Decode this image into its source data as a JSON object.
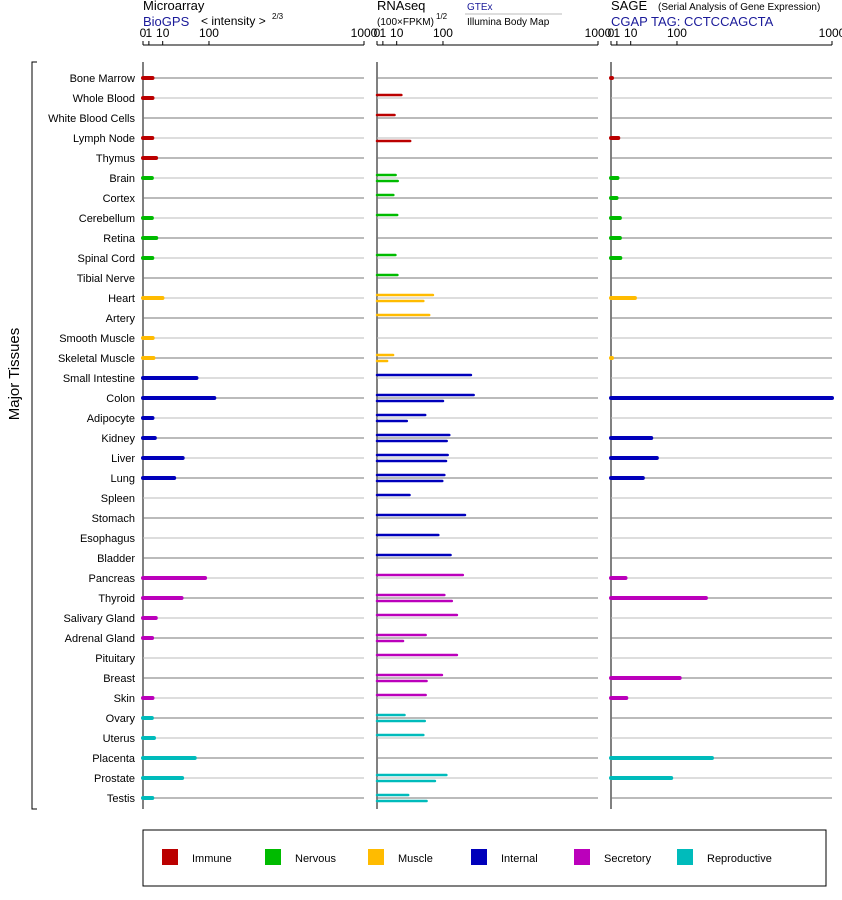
{
  "y_axis_label": "Major Tissues",
  "legend": [
    {
      "name": "Immune",
      "color": "#bb0000"
    },
    {
      "name": "Nervous",
      "color": "#00bb00"
    },
    {
      "name": "Muscle",
      "color": "#ffbb00"
    },
    {
      "name": "Internal",
      "color": "#0000bb"
    },
    {
      "name": "Secretory",
      "color": "#bb00bb"
    },
    {
      "name": "Reproductive",
      "color": "#00bbbb"
    }
  ],
  "chart_data": [
    {
      "type": "bar",
      "panel": "microarray",
      "title": "Microarray",
      "subtitle_link": "BioGPS",
      "subtitle_note": "< intensity >",
      "subtitle_exp": "2/3",
      "xscale": "power",
      "xticks": [
        "0",
        "1",
        "10",
        "100",
        "1000"
      ],
      "xlim": [
        0,
        1000
      ],
      "categories": [
        "Bone Marrow",
        "Whole Blood",
        "White Blood Cells",
        "Lymph Node",
        "Thymus",
        "Brain",
        "Cortex",
        "Cerebellum",
        "Retina",
        "Spinal Cord",
        "Tibial Nerve",
        "Heart",
        "Artery",
        "Smooth Muscle",
        "Skeletal Muscle",
        "Small Intestine",
        "Colon",
        "Adipocyte",
        "Kidney",
        "Liver",
        "Lung",
        "Spleen",
        "Stomach",
        "Esophagus",
        "Bladder",
        "Pancreas",
        "Thyroid",
        "Salivary Gland",
        "Adrenal Gland",
        "Pituitary",
        "Breast",
        "Skin",
        "Ovary",
        "Uterus",
        "Placenta",
        "Prostate",
        "Testis"
      ],
      "values": [
        2.5,
        2.5,
        null,
        2.4,
        4.6,
        2.2,
        null,
        2.2,
        4.7,
        2.4,
        null,
        9.8,
        null,
        2.6,
        3.0,
        67,
        116,
        2.5,
        3.8,
        38,
        24,
        null,
        null,
        null,
        null,
        89,
        36,
        4.4,
        2.3,
        null,
        null,
        2.5,
        2.2,
        3.3,
        63,
        37,
        2.4
      ],
      "groups": [
        "Immune",
        "Immune",
        "Immune",
        "Immune",
        "Immune",
        "Nervous",
        "Nervous",
        "Nervous",
        "Nervous",
        "Nervous",
        "Nervous",
        "Muscle",
        "Muscle",
        "Muscle",
        "Muscle",
        "Internal",
        "Internal",
        "Internal",
        "Internal",
        "Internal",
        "Internal",
        "Internal",
        "Internal",
        "Internal",
        "Internal",
        "Secretory",
        "Secretory",
        "Secretory",
        "Secretory",
        "Secretory",
        "Secretory",
        "Secretory",
        "Reproductive",
        "Reproductive",
        "Reproductive",
        "Reproductive",
        "Reproductive"
      ]
    },
    {
      "type": "bar",
      "panel": "rnaseq",
      "title": "RNAseq",
      "subtitle_note": "(100×FPKM)",
      "subtitle_exp": "1/2",
      "sources": [
        "GTEx",
        "Illumina Body Map"
      ],
      "xscale": "power",
      "xticks": [
        "0",
        "1",
        "10",
        "100",
        "1000"
      ],
      "xlim": [
        0,
        1000
      ],
      "categories": [
        "Bone Marrow",
        "Whole Blood",
        "White Blood Cells",
        "Lymph Node",
        "Thymus",
        "Brain",
        "Cortex",
        "Cerebellum",
        "Retina",
        "Spinal Cord",
        "Tibial Nerve",
        "Heart",
        "Artery",
        "Smooth Muscle",
        "Skeletal Muscle",
        "Small Intestine",
        "Colon",
        "Adipocyte",
        "Kidney",
        "Liver",
        "Lung",
        "Spleen",
        "Stomach",
        "Esophagus",
        "Bladder",
        "Pancreas",
        "Thyroid",
        "Salivary Gland",
        "Adrenal Gland",
        "Pituitary",
        "Breast",
        "Skin",
        "Ovary",
        "Uterus",
        "Placenta",
        "Prostate",
        "Testis"
      ],
      "series": [
        {
          "name": "GTEx",
          "values": [
            null,
            15,
            8,
            null,
            null,
            9,
            7,
            10.5,
            null,
            8.8,
            10.7,
            73,
            64,
            null,
            6.8,
            196,
            207,
            55,
            119,
            114,
            104,
            26,
            173,
            87,
            123,
            165,
            104,
            144,
            56,
            144,
            97,
            56,
            18.9,
            51,
            null,
            110,
            24
          ]
        },
        {
          "name": "Illumina Body Map",
          "values": [
            null,
            null,
            null,
            27,
            null,
            11,
            null,
            null,
            null,
            null,
            null,
            51,
            null,
            null,
            2.8,
            null,
            100,
            22,
            111,
            109,
            98,
            null,
            null,
            null,
            null,
            null,
            127,
            null,
            17,
            null,
            58,
            null,
            54,
            null,
            null,
            78,
            58
          ]
        }
      ],
      "groups": [
        "Immune",
        "Immune",
        "Immune",
        "Immune",
        "Immune",
        "Nervous",
        "Nervous",
        "Nervous",
        "Nervous",
        "Nervous",
        "Nervous",
        "Muscle",
        "Muscle",
        "Muscle",
        "Muscle",
        "Internal",
        "Internal",
        "Internal",
        "Internal",
        "Internal",
        "Internal",
        "Internal",
        "Internal",
        "Internal",
        "Internal",
        "Secretory",
        "Secretory",
        "Secretory",
        "Secretory",
        "Secretory",
        "Secretory",
        "Secretory",
        "Reproductive",
        "Reproductive",
        "Reproductive",
        "Reproductive",
        "Reproductive"
      ]
    },
    {
      "type": "bar",
      "panel": "sage",
      "title": "SAGE",
      "subtitle_note": "(Serial Analysis of Gene Expression)",
      "tag_label": "CGAP TAG: CCTCCAGCTA",
      "xscale": "power",
      "xticks": [
        "0",
        "1",
        "10",
        "100",
        "1000"
      ],
      "xlim": [
        0,
        1000
      ],
      "categories": [
        "Bone Marrow",
        "Whole Blood",
        "White Blood Cells",
        "Lymph Node",
        "Thymus",
        "Brain",
        "Cortex",
        "Cerebellum",
        "Retina",
        "Spinal Cord",
        "Tibial Nerve",
        "Heart",
        "Artery",
        "Smooth Muscle",
        "Skeletal Muscle",
        "Small Intestine",
        "Colon",
        "Adipocyte",
        "Kidney",
        "Liver",
        "Lung",
        "Spleen",
        "Stomach",
        "Esophagus",
        "Bladder",
        "Pancreas",
        "Thyroid",
        "Salivary Gland",
        "Adrenal Gland",
        "Pituitary",
        "Breast",
        "Skin",
        "Ovary",
        "Uterus",
        "Placenta",
        "Prostate",
        "Testis"
      ],
      "values": [
        0.02,
        null,
        null,
        1.5,
        null,
        1.2,
        0.9,
        2.2,
        2.2,
        2.4,
        null,
        14.5,
        null,
        null,
        0.01,
        null,
        1000,
        null,
        39,
        50,
        25,
        null,
        null,
        null,
        null,
        5.6,
        200,
        null,
        null,
        null,
        108,
        6.2,
        null,
        null,
        225,
        84,
        null
      ],
      "groups": [
        "Immune",
        "Immune",
        "Immune",
        "Immune",
        "Immune",
        "Nervous",
        "Nervous",
        "Nervous",
        "Nervous",
        "Nervous",
        "Nervous",
        "Muscle",
        "Muscle",
        "Muscle",
        "Muscle",
        "Internal",
        "Internal",
        "Internal",
        "Internal",
        "Internal",
        "Internal",
        "Internal",
        "Internal",
        "Internal",
        "Internal",
        "Secretory",
        "Secretory",
        "Secretory",
        "Secretory",
        "Secretory",
        "Secretory",
        "Secretory",
        "Reproductive",
        "Reproductive",
        "Reproductive",
        "Reproductive",
        "Reproductive"
      ]
    }
  ]
}
